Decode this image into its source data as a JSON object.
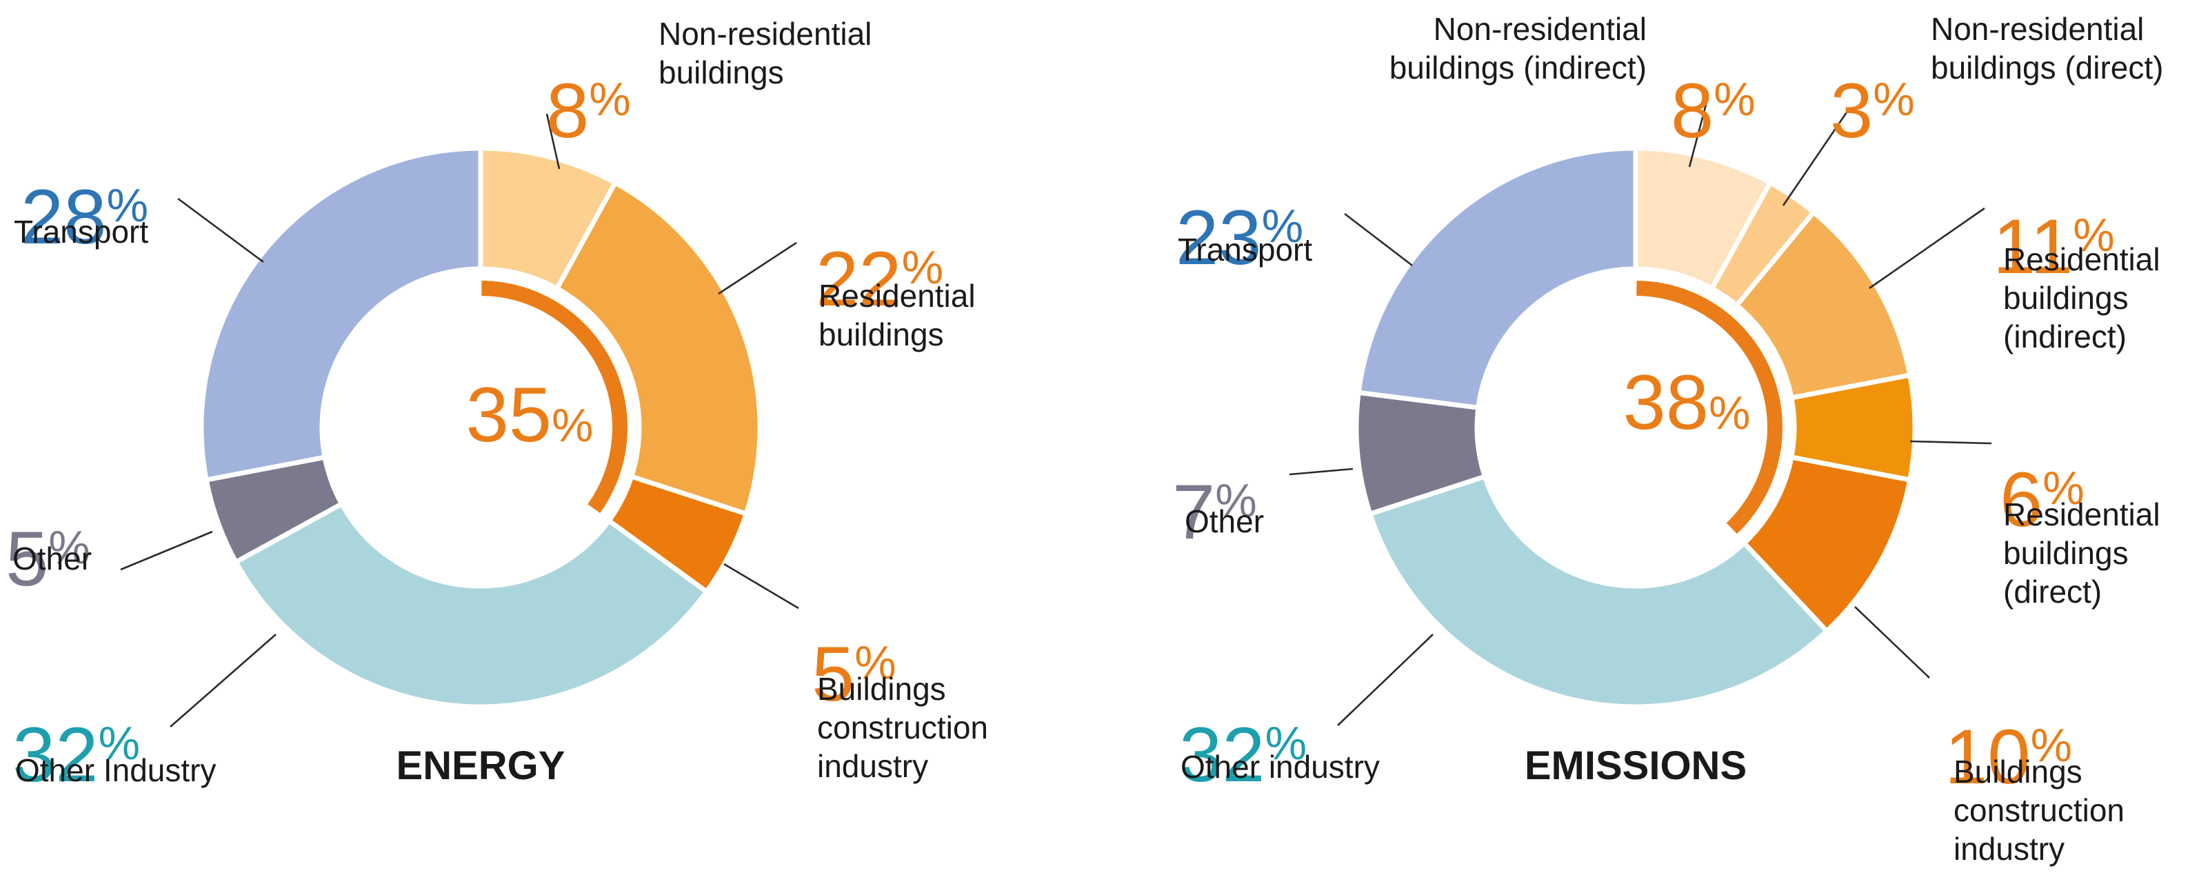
{
  "colors": {
    "accent": "#ea7d17",
    "transport": "#2e75b6",
    "industry": "#1e9fad",
    "other": "#7b7a8c"
  },
  "chart_data": [
    {
      "type": "pie",
      "title": "ENERGY",
      "center_value": "35",
      "slices": [
        {
          "id": "nonres",
          "value": 8,
          "number": "8",
          "label": [
            "Non-residential",
            "buildings"
          ],
          "color": "#fcd08f",
          "text_color": "#ea7d17"
        },
        {
          "id": "res",
          "value": 22,
          "number": "22",
          "label": [
            "Residential",
            "buildings"
          ],
          "color": "#f4a843",
          "text_color": "#ea7d17"
        },
        {
          "id": "constr",
          "value": 5,
          "number": "5",
          "label": [
            "Buildings",
            "construction",
            "industry"
          ],
          "color": "#ec7b0b",
          "text_color": "#ea7d17"
        },
        {
          "id": "industry",
          "value": 32,
          "number": "32",
          "label": [
            "Other Industry"
          ],
          "color": "#abd5dc",
          "text_color": "#1e9fad"
        },
        {
          "id": "other",
          "value": 5,
          "number": "5",
          "label": [
            "Other"
          ],
          "color": "#7b7a8c",
          "text_color": "#7b7a8c"
        },
        {
          "id": "transport",
          "value": 28,
          "number": "28",
          "label": [
            "Transport"
          ],
          "color": "#a1b3dd",
          "text_color": "#2e75b6"
        }
      ]
    },
    {
      "type": "pie",
      "title": "EMISSIONS",
      "center_value": "38",
      "slices": [
        {
          "id": "nonres-indirect",
          "value": 8,
          "number": "8",
          "label": [
            "Non-residential",
            "buildings (indirect)"
          ],
          "color": "#fde3bf",
          "text_color": "#ea7d17"
        },
        {
          "id": "nonres-direct",
          "value": 3,
          "number": "3",
          "label": [
            "Non-residential",
            "buildings (direct)"
          ],
          "color": "#fccb8a",
          "text_color": "#ea7d17"
        },
        {
          "id": "res-indirect",
          "value": 11,
          "number": "11",
          "label": [
            "Residential",
            "buildings",
            "(indirect)"
          ],
          "color": "#f5b055",
          "text_color": "#ea7d17"
        },
        {
          "id": "res-direct",
          "value": 6,
          "number": "6",
          "label": [
            "Residential",
            "buildings",
            "(direct)"
          ],
          "color": "#f0930b",
          "text_color": "#ea7d17"
        },
        {
          "id": "constr",
          "value": 10,
          "number": "10",
          "label": [
            "Buildings",
            "construction",
            "industry"
          ],
          "color": "#ec7b0b",
          "text_color": "#ea7d17"
        },
        {
          "id": "industry",
          "value": 32,
          "number": "32",
          "label": [
            "Other industry"
          ],
          "color": "#abd5dc",
          "text_color": "#1e9fad"
        },
        {
          "id": "other",
          "value": 7,
          "number": "7",
          "label": [
            "Other"
          ],
          "color": "#7b7a8c",
          "text_color": "#7b7a8c"
        },
        {
          "id": "transport",
          "value": 23,
          "number": "23",
          "label": [
            "Transport"
          ],
          "color": "#a1b3dd",
          "text_color": "#2e75b6"
        }
      ]
    }
  ]
}
